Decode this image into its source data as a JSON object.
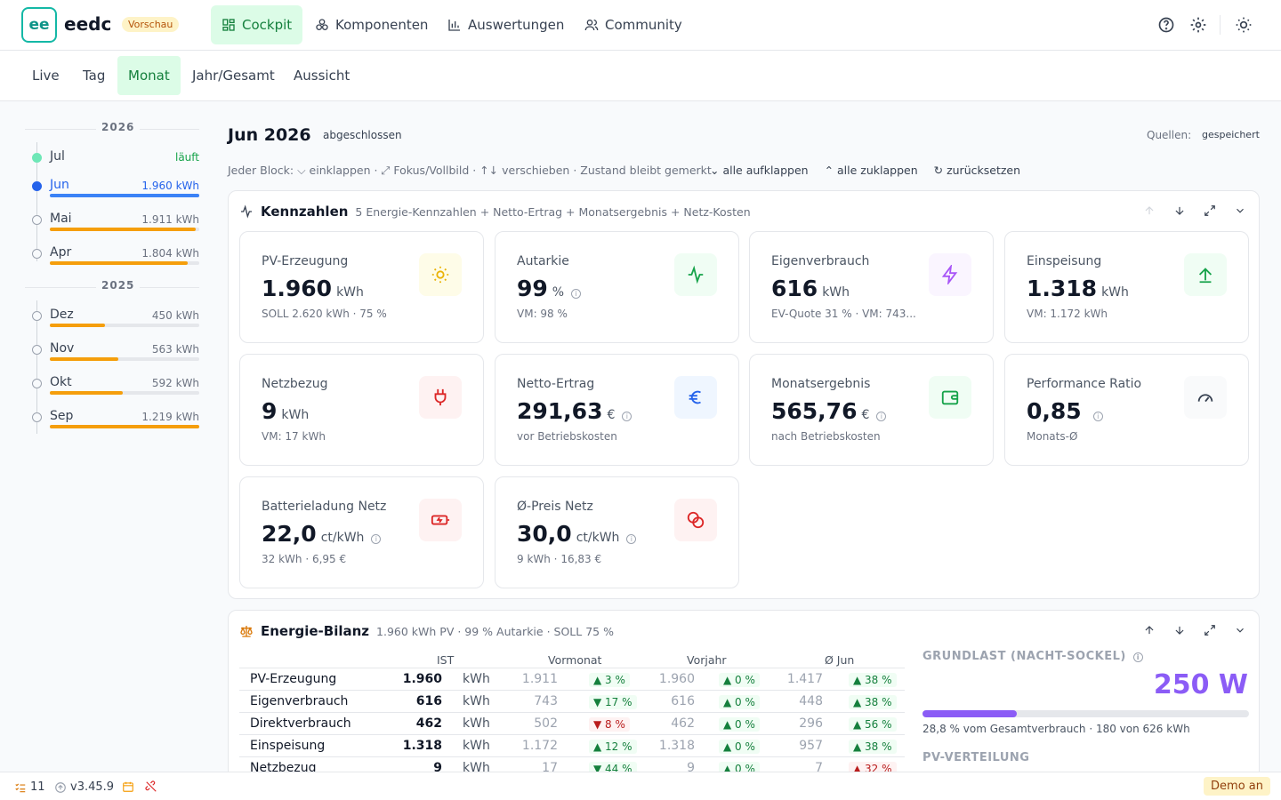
{
  "app": {
    "logo_text": "ee",
    "name": "eedc",
    "badge": "Vorschau"
  },
  "nav": [
    {
      "label": "Cockpit",
      "icon": "dashboard-icon"
    },
    {
      "label": "Komponenten",
      "icon": "components-icon"
    },
    {
      "label": "Auswertungen",
      "icon": "bar-chart-icon"
    },
    {
      "label": "Community",
      "icon": "users-icon"
    }
  ],
  "subtabs": [
    "Live",
    "Tag",
    "Monat",
    "Jahr/Gesamt",
    "Aussicht"
  ],
  "sidebar": {
    "years": [
      {
        "year": "2026",
        "months": [
          {
            "name": "Jul",
            "value": "läuft",
            "state": "running",
            "fill": 0
          },
          {
            "name": "Jun",
            "value": "1.960 kWh",
            "state": "selected",
            "fill": 1.0
          },
          {
            "name": "Mai",
            "value": "1.911 kWh",
            "state": "",
            "fill": 0.975
          },
          {
            "name": "Apr",
            "value": "1.804 kWh",
            "state": "",
            "fill": 0.92
          }
        ]
      },
      {
        "year": "2025",
        "months": [
          {
            "name": "Dez",
            "value": "450 kWh",
            "state": "",
            "fill": 0.37
          },
          {
            "name": "Nov",
            "value": "563 kWh",
            "state": "",
            "fill": 0.46
          },
          {
            "name": "Okt",
            "value": "592 kWh",
            "state": "",
            "fill": 0.49
          },
          {
            "name": "Sep",
            "value": "1.219 kWh",
            "state": "",
            "fill": 1.0
          }
        ]
      }
    ]
  },
  "header": {
    "title": "Jun 2026",
    "status": "abgeschlossen",
    "sources_label": "Quellen:",
    "sources_value": "gespeichert"
  },
  "hint": {
    "text": "Jeder Block: ⌵ einklappen · ⤢ Fokus/Vollbild · ↑↓ verschieben · Zustand bleibt gemerkt",
    "expand_all": "alle aufklappen",
    "collapse_all": "alle zuklappen",
    "reset": "zurücksetzen"
  },
  "kennzahlen": {
    "title": "Kennzahlen",
    "subtitle": "5 Energie-Kennzahlen + Netto-Ertrag + Monatsergebnis + Netz-Kosten",
    "cards": [
      {
        "label": "PV-Erzeugung",
        "value": "1.960",
        "unit": "kWh",
        "sub": "SOLL 2.620 kWh · 75 %",
        "icon": "sun-icon",
        "bg": "#fefce8",
        "fg": "#eab308",
        "info": false
      },
      {
        "label": "Autarkie",
        "value": "99",
        "unit": "%",
        "sub": "VM: 98 %",
        "icon": "activity-icon",
        "bg": "#f0fdf4",
        "fg": "#16a34a",
        "info": true
      },
      {
        "label": "Eigenverbrauch",
        "value": "616",
        "unit": "kWh",
        "sub": "EV-Quote 31 % · VM: 743...",
        "icon": "lightning-icon",
        "bg": "#faf5ff",
        "fg": "#a855f7",
        "info": false
      },
      {
        "label": "Einspeisung",
        "value": "1.318",
        "unit": "kWh",
        "sub": "VM: 1.172 kWh",
        "icon": "arrow-up-icon",
        "bg": "#f0fdf4",
        "fg": "#16a34a",
        "info": false
      },
      {
        "label": "Netzbezug",
        "value": "9",
        "unit": "kWh",
        "sub": "VM: 17 kWh",
        "icon": "plug-icon",
        "bg": "#fef2f2",
        "fg": "#dc2626",
        "info": false
      },
      {
        "label": "Netto-Ertrag",
        "value": "291,63",
        "unit": "€",
        "sub": "vor Betriebskosten",
        "icon": "euro-icon",
        "bg": "#eff6ff",
        "fg": "#2563eb",
        "info": true
      },
      {
        "label": "Monatsergebnis",
        "value": "565,76",
        "unit": "€",
        "sub": "nach Betriebskosten",
        "icon": "wallet-icon",
        "bg": "#f0fdf4",
        "fg": "#16a34a",
        "info": true
      },
      {
        "label": "Performance Ratio",
        "value": "0,85",
        "unit": "",
        "sub": "Monats-Ø",
        "icon": "gauge-icon",
        "bg": "#f9fafb",
        "fg": "#374151",
        "info": true
      },
      {
        "label": "Batterieladung Netz",
        "value": "22,0",
        "unit": "ct/kWh",
        "sub": "32 kWh · 6,95 €",
        "icon": "battery-charging-icon",
        "bg": "#fef2f2",
        "fg": "#dc2626",
        "info": true
      },
      {
        "label": "Ø-Preis Netz",
        "value": "30,0",
        "unit": "ct/kWh",
        "sub": "9 kWh · 16,83 €",
        "icon": "coins-icon",
        "bg": "#fef2f2",
        "fg": "#dc2626",
        "info": true
      }
    ]
  },
  "bilanz": {
    "title": "Energie-Bilanz",
    "subtitle": "1.960 kWh PV · 99 % Autarkie · SOLL 75 %",
    "headers": {
      "ist": "IST",
      "vormonat": "Vormonat",
      "vorjahr": "Vorjahr",
      "avg": "Ø Jun"
    },
    "rows": [
      {
        "label": "PV-Erzeugung",
        "ist": "1.960",
        "unit": "kWh",
        "vm": "1.911",
        "vm_delta": "▲ 3 %",
        "vm_dir": "up",
        "vj": "1.960",
        "vj_delta": "▲ 0 %",
        "vj_dir": "up",
        "avg": "1.417",
        "avg_delta": "▲ 38 %",
        "avg_dir": "up"
      },
      {
        "label": "Eigenverbrauch",
        "ist": "616",
        "unit": "kWh",
        "vm": "743",
        "vm_delta": "▼ 17 %",
        "vm_dir": "up",
        "vj": "616",
        "vj_delta": "▲ 0 %",
        "vj_dir": "up",
        "avg": "448",
        "avg_delta": "▲ 38 %",
        "avg_dir": "up"
      },
      {
        "label": "Direktverbrauch",
        "ist": "462",
        "unit": "kWh",
        "vm": "502",
        "vm_delta": "▼ 8 %",
        "vm_dir": "down",
        "vj": "462",
        "vj_delta": "▲ 0 %",
        "vj_dir": "up",
        "avg": "296",
        "avg_delta": "▲ 56 %",
        "avg_dir": "up"
      },
      {
        "label": "Einspeisung",
        "ist": "1.318",
        "unit": "kWh",
        "vm": "1.172",
        "vm_delta": "▲ 12 %",
        "vm_dir": "up",
        "vj": "1.318",
        "vj_delta": "▲ 0 %",
        "vj_dir": "up",
        "avg": "957",
        "avg_delta": "▲ 38 %",
        "avg_dir": "up"
      },
      {
        "label": "Netzbezug",
        "ist": "9",
        "unit": "kWh",
        "vm": "17",
        "vm_delta": "▼ 44 %",
        "vm_dir": "up",
        "vj": "9",
        "vj_delta": "▲ 0 %",
        "vj_dir": "up",
        "avg": "7",
        "avg_delta": "▲ 32 %",
        "avg_dir": "down"
      }
    ],
    "grundlast": {
      "title": "GRUNDLAST (NACHT-SOCKEL)",
      "value": "250 W",
      "share": 0.288,
      "sub": "28,8 % vom Gesamtverbrauch · 180 von 626 kWh"
    },
    "pv_title": "PV-VERTEILUNG"
  },
  "footer": {
    "tasks": "11",
    "version": "v3.45.9",
    "demo": "Demo an"
  }
}
